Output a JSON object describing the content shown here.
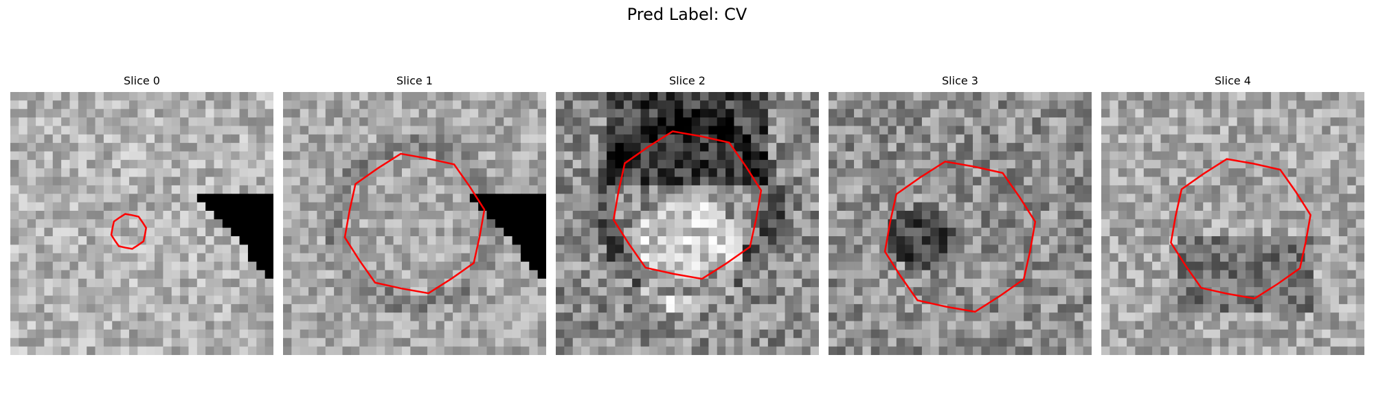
{
  "figure": {
    "title": "Pred Label: CV"
  },
  "slices": [
    {
      "label": "Slice 0",
      "seed": 11,
      "base": 0.7,
      "contrast": 0.35,
      "corner": "bottom-right",
      "contour_radius": 0.13,
      "contour_center": [
        0.45,
        0.53
      ],
      "blob": "none"
    },
    {
      "label": "Slice 1",
      "seed": 23,
      "base": 0.66,
      "contrast": 0.33,
      "corner": "bottom-right",
      "contour_radius": 0.52,
      "contour_center": [
        0.5,
        0.5
      ],
      "blob": "ring"
    },
    {
      "label": "Slice 2",
      "seed": 37,
      "base": 0.55,
      "contrast": 0.45,
      "corner": "none",
      "contour_radius": 0.55,
      "contour_center": [
        0.5,
        0.43
      ],
      "blob": "bright"
    },
    {
      "label": "Slice 3",
      "seed": 51,
      "base": 0.56,
      "contrast": 0.42,
      "corner": "none",
      "contour_radius": 0.56,
      "contour_center": [
        0.5,
        0.55
      ],
      "blob": "dark"
    },
    {
      "label": "Slice 4",
      "seed": 67,
      "base": 0.66,
      "contrast": 0.36,
      "corner": "none",
      "contour_radius": 0.52,
      "contour_center": [
        0.53,
        0.52
      ],
      "blob": "dark-low"
    }
  ],
  "colors": {
    "contour": "#ff0000",
    "background": "#ffffff"
  }
}
